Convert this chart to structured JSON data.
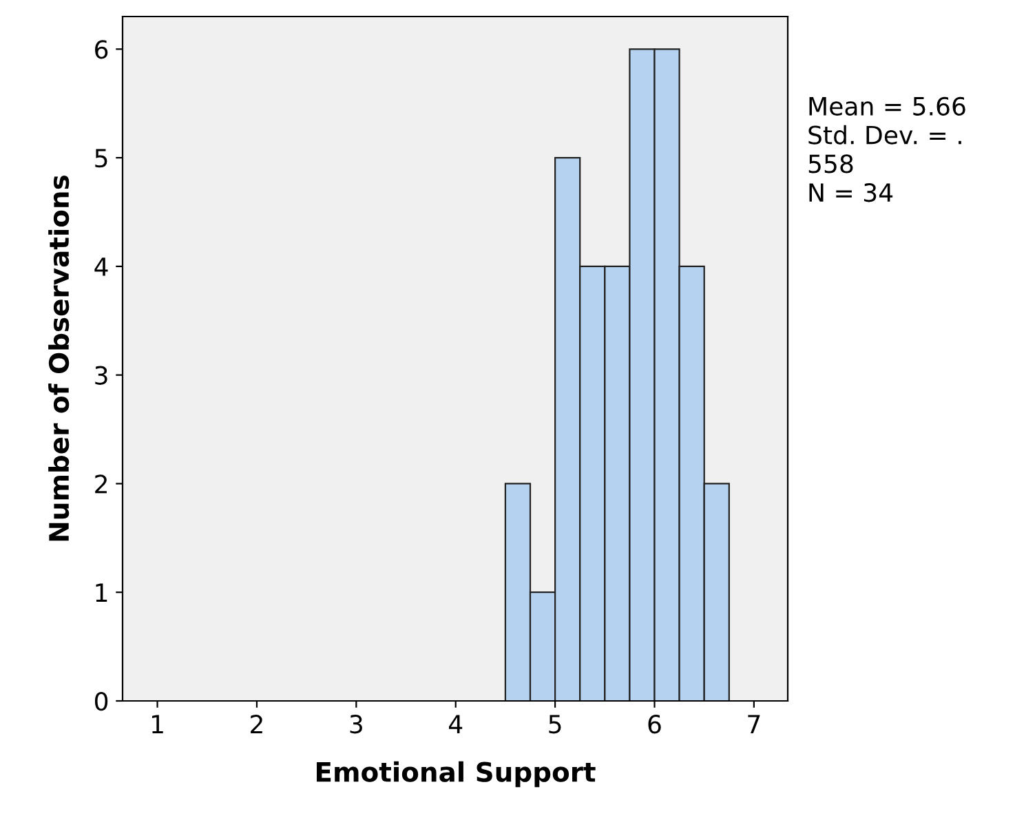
{
  "chart_data": {
    "type": "histogram",
    "xlabel": "Emotional Support",
    "ylabel": "Number of Observations",
    "bins": [
      4.5,
      4.75,
      5.0,
      5.25,
      5.5,
      5.75,
      6.0,
      6.25,
      6.5,
      6.75
    ],
    "values": [
      2,
      1,
      5,
      4,
      4,
      6,
      6,
      4,
      2
    ],
    "color": "#b5d3f0",
    "xlim": [
      0.65,
      7.34
    ],
    "ylim": [
      0,
      6.3
    ],
    "xticks": [
      1,
      2,
      3,
      4,
      5,
      6,
      7
    ],
    "yticks": [
      0,
      1,
      2,
      3,
      4,
      5,
      6
    ],
    "grid": false,
    "legend": false,
    "annotations": [
      "Mean = 5.66\nStd. Dev. = .\n558\nN = 34"
    ]
  }
}
